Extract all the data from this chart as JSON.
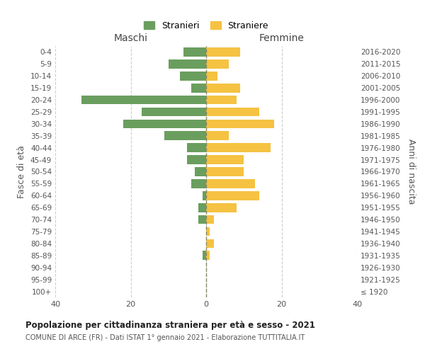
{
  "age_groups": [
    "100+",
    "95-99",
    "90-94",
    "85-89",
    "80-84",
    "75-79",
    "70-74",
    "65-69",
    "60-64",
    "55-59",
    "50-54",
    "45-49",
    "40-44",
    "35-39",
    "30-34",
    "25-29",
    "20-24",
    "15-19",
    "10-14",
    "5-9",
    "0-4"
  ],
  "birth_years": [
    "≤ 1920",
    "1921-1925",
    "1926-1930",
    "1931-1935",
    "1936-1940",
    "1941-1945",
    "1946-1950",
    "1951-1955",
    "1956-1960",
    "1961-1965",
    "1966-1970",
    "1971-1975",
    "1976-1980",
    "1981-1985",
    "1986-1990",
    "1991-1995",
    "1996-2000",
    "2001-2005",
    "2006-2010",
    "2011-2015",
    "2016-2020"
  ],
  "males": [
    0,
    0,
    0,
    1,
    0,
    0,
    2,
    2,
    1,
    4,
    3,
    5,
    5,
    11,
    22,
    17,
    33,
    4,
    7,
    10,
    6
  ],
  "females": [
    0,
    0,
    0,
    1,
    2,
    1,
    2,
    8,
    14,
    13,
    10,
    10,
    17,
    6,
    18,
    14,
    8,
    9,
    3,
    6,
    9
  ],
  "male_color": "#6a9e5e",
  "female_color": "#f5c242",
  "title": "Popolazione per cittadinanza straniera per età e sesso - 2021",
  "subtitle": "COMUNE DI ARCE (FR) - Dati ISTAT 1° gennaio 2021 - Elaborazione TUTTITALIA.IT",
  "xlabel_left": "Maschi",
  "xlabel_right": "Femmine",
  "ylabel_left": "Fasce di età",
  "ylabel_right": "Anni di nascita",
  "legend_males": "Stranieri",
  "legend_females": "Straniere",
  "xlim": 40,
  "background_color": "#ffffff",
  "grid_color": "#cccccc"
}
